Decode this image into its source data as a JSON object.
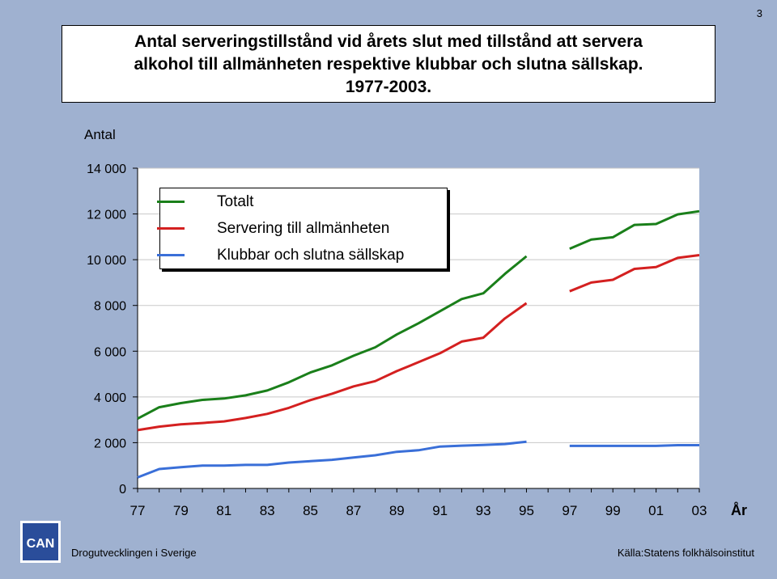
{
  "page_number": "3",
  "title_lines": [
    "Antal serveringstillstånd vid årets slut med tillstånd att servera",
    "alkohol till allmänheten respektive klubbar och slutna sällskap.",
    "1977-2003."
  ],
  "footer": {
    "left": "Drogutvecklingen i Sverige",
    "right": "Källa:Statens folkhälsoinstitut"
  },
  "logo": {
    "name": "can-logo",
    "text": "CAN"
  },
  "colors": {
    "background": "#9fb1d0",
    "plot_background": "#ffffff",
    "totalt": "#1a7f1a",
    "allmanheten": "#d42020",
    "klubbar": "#3a6fd8"
  },
  "chart_data": {
    "type": "line",
    "title": "Antal serveringstillstånd vid årets slut med tillstånd att servera alkohol till allmänheten respektive klubbar och slutna sällskap. 1977-2003.",
    "ylabel": "Antal",
    "xlabel": "År",
    "ylim": [
      0,
      14000
    ],
    "yticks": [
      0,
      2000,
      4000,
      6000,
      8000,
      10000,
      12000,
      14000
    ],
    "ytick_labels": [
      "0",
      "2 000",
      "4 000",
      "6 000",
      "8 000",
      "10 000",
      "12 000",
      "14 000"
    ],
    "x": [
      1977,
      1978,
      1979,
      1980,
      1981,
      1982,
      1983,
      1984,
      1985,
      1986,
      1987,
      1988,
      1989,
      1990,
      1991,
      1992,
      1993,
      1994,
      1995,
      1996,
      1997,
      1998,
      1999,
      2000,
      2001,
      2002,
      2003
    ],
    "xticks": [
      1977,
      1979,
      1981,
      1983,
      1985,
      1987,
      1989,
      1991,
      1993,
      1995,
      1997,
      1999,
      2001,
      2003
    ],
    "xtick_labels": [
      "77",
      "79",
      "81",
      "83",
      "85",
      "87",
      "89",
      "91",
      "93",
      "95",
      "97",
      "99",
      "01",
      "03"
    ],
    "grid": "horizontal",
    "legend_position": "top-left",
    "series": [
      {
        "name": "Totalt",
        "color_key": "totalt",
        "values": [
          3050,
          3550,
          3730,
          3870,
          3930,
          4070,
          4280,
          4640,
          5070,
          5380,
          5800,
          6170,
          6730,
          7220,
          7750,
          8280,
          8530,
          9380,
          10150,
          null,
          10480,
          10880,
          10980,
          11520,
          11560,
          11980,
          12120
        ]
      },
      {
        "name": "Servering till allmänheten",
        "color_key": "allmanheten",
        "values": [
          2550,
          2700,
          2800,
          2860,
          2930,
          3080,
          3260,
          3520,
          3860,
          4140,
          4460,
          4690,
          5130,
          5520,
          5910,
          6420,
          6590,
          7430,
          8100,
          null,
          8620,
          9000,
          9120,
          9600,
          9680,
          10080,
          10200
        ]
      },
      {
        "name": "Klubbar och slutna sällskap",
        "color_key": "klubbar",
        "values": [
          480,
          850,
          930,
          1000,
          1000,
          1030,
          1030,
          1130,
          1190,
          1250,
          1350,
          1450,
          1600,
          1670,
          1830,
          1870,
          1900,
          1940,
          2040,
          null,
          1860,
          1860,
          1860,
          1860,
          1860,
          1890,
          1890
        ]
      }
    ]
  }
}
